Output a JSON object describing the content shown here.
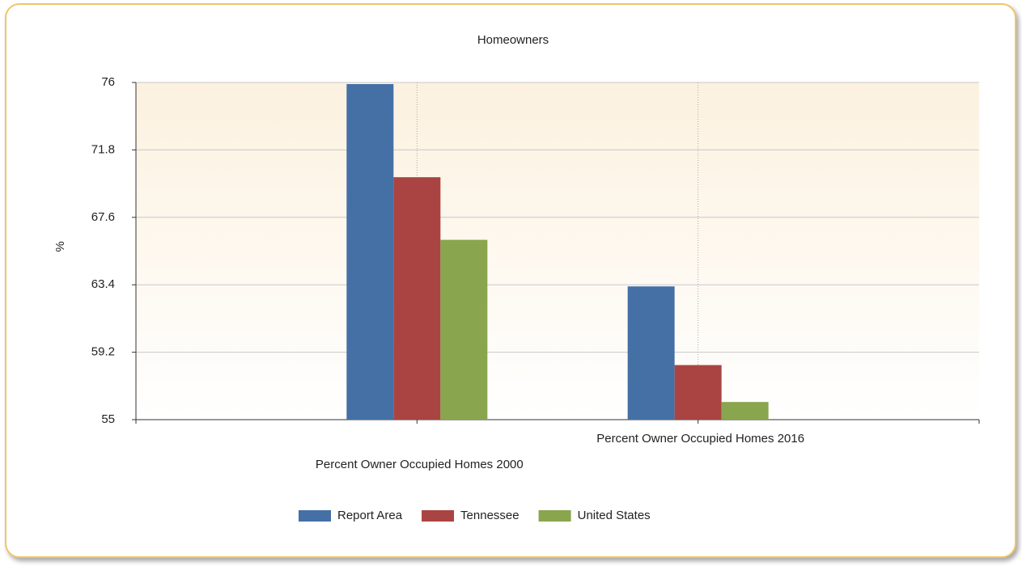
{
  "chart_data": {
    "type": "bar",
    "title": "Homeowners",
    "y_label": "%",
    "categories": [
      "Percent Owner Occupied Homes 2000",
      "Percent Owner Occupied Homes 2016"
    ],
    "series": [
      {
        "name": "Report Area",
        "color": "#4470a6",
        "values": [
          75.9,
          63.3
        ]
      },
      {
        "name": "Tennessee",
        "color": "#a94442",
        "values": [
          70.1,
          58.4
        ]
      },
      {
        "name": "United States",
        "color": "#89a54e",
        "values": [
          66.2,
          56.1
        ]
      }
    ],
    "ylim": [
      55,
      76
    ],
    "yticks": [
      55,
      59.2,
      63.4,
      67.6,
      71.8,
      76
    ],
    "grid": true,
    "legend": "bottom"
  }
}
